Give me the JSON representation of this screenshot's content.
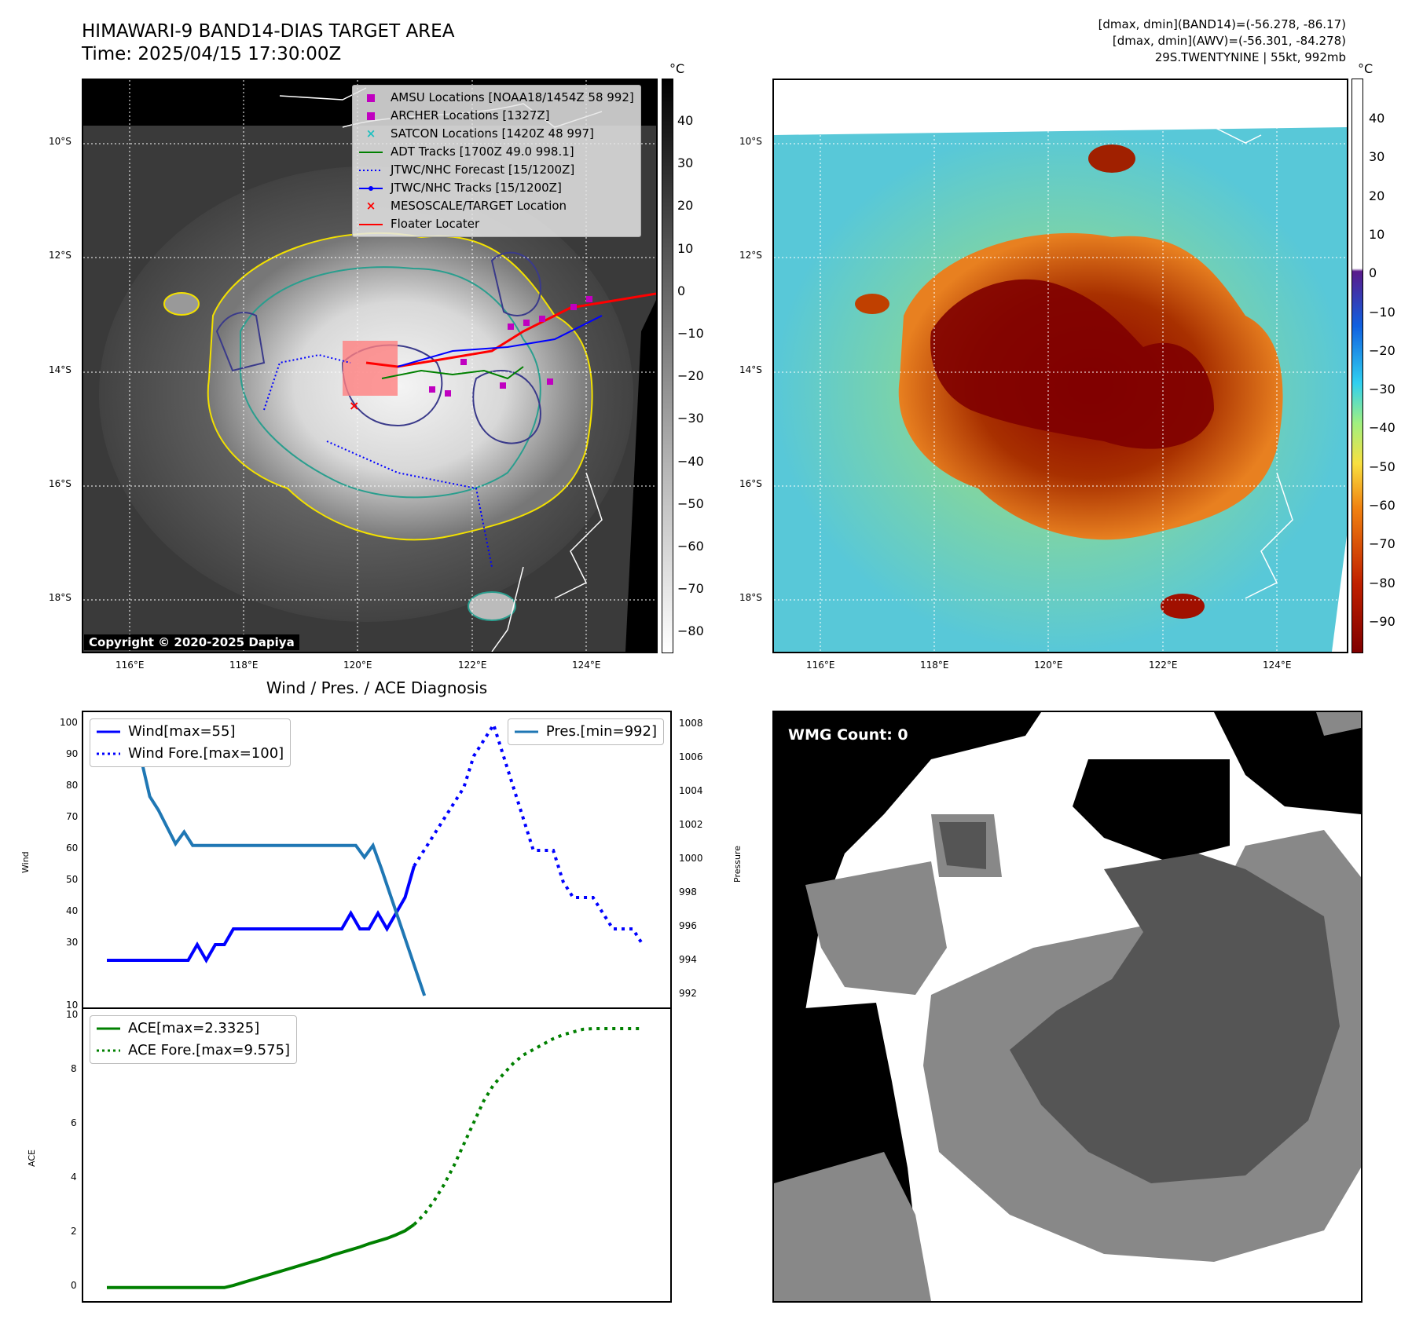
{
  "header": {
    "title_line1": "HIMAWARI-9 BAND14-DIAS TARGET AREA",
    "title_line2": "Time: 2025/04/15 17:30:00Z",
    "info_line1": "[dmax, dmin](BAND14)=(-56.278, -86.17)",
    "info_line2": "[dmax, dmin](AWV)=(-56.301, -84.278)",
    "info_line3": "29S.TWENTYNINE | 55kt, 992mb"
  },
  "map_axes": {
    "lat_labels": [
      "10°S",
      "12°S",
      "14°S",
      "16°S",
      "18°S"
    ],
    "lon_labels": [
      "116°E",
      "118°E",
      "120°E",
      "122°E",
      "124°E"
    ]
  },
  "colorbar_left": {
    "unit": "°C",
    "ticks": [
      "40",
      "30",
      "20",
      "10",
      "0",
      "−10",
      "−20",
      "−30",
      "−40",
      "−50",
      "−60",
      "−70",
      "−80"
    ]
  },
  "colorbar_right": {
    "unit": "°C",
    "ticks": [
      "40",
      "30",
      "20",
      "10",
      "0",
      "−10",
      "−20",
      "−30",
      "−40",
      "−50",
      "−60",
      "−70",
      "−80",
      "−90"
    ]
  },
  "map_legend": [
    {
      "label": "AMSU Locations [NOAA18/1454Z 58 992]",
      "marker": "square",
      "color": "#c000c0"
    },
    {
      "label": "ARCHER Locations [1327Z]",
      "marker": "square",
      "color": "#c000c0"
    },
    {
      "label": "SATCON Locations [1420Z 48 997]",
      "marker": "x",
      "color": "#20c0c0"
    },
    {
      "label": "ADT Tracks [1700Z 49.0 998.1]",
      "marker": "line",
      "color": "#008000"
    },
    {
      "label": "JTWC/NHC Forecast [15/1200Z]",
      "marker": "dotted",
      "color": "#0000ff"
    },
    {
      "label": "JTWC/NHC Tracks [15/1200Z]",
      "marker": "line-dot",
      "color": "#0000ff"
    },
    {
      "label": "MESOSCALE/TARGET Location",
      "marker": "x",
      "color": "#ff0000"
    },
    {
      "label": "Floater Locater",
      "marker": "line",
      "color": "#ff0000"
    }
  ],
  "copyright": "Copyright © 2020-2025 Dapiya",
  "wmg_label": "WMG Count: 0",
  "chart_data": [
    {
      "type": "line",
      "title": "Wind / Pres. / ACE Diagnosis",
      "ylabel": "Wind",
      "y2label": "Pressure",
      "ylim": [
        10,
        104
      ],
      "y2lim": [
        991.3,
        1008.8
      ],
      "yticks": [
        10,
        30,
        40,
        50,
        60,
        70,
        80,
        90,
        100
      ],
      "y2ticks": [
        992,
        994,
        996,
        998,
        1000,
        1002,
        1004,
        1006,
        1008
      ],
      "series": [
        {
          "name": "Wind[max=55]",
          "axis": "left",
          "style": "solid",
          "color": "#0000ff",
          "values": [
            25,
            25,
            25,
            25,
            25,
            25,
            25,
            25,
            25,
            25,
            30,
            25,
            30,
            30,
            35,
            35,
            35,
            35,
            35,
            35,
            35,
            35,
            35,
            35,
            35,
            35,
            35,
            40,
            35,
            35,
            40,
            35,
            40,
            45,
            55
          ]
        },
        {
          "name": "Wind Fore.[max=100]",
          "axis": "left",
          "style": "dotted",
          "color": "#0000ff",
          "values": [
            55,
            60,
            65,
            70,
            75,
            80,
            90,
            95,
            100,
            90,
            80,
            70,
            60,
            60,
            60,
            50,
            45,
            45,
            45,
            40,
            35,
            35,
            35,
            30
          ]
        },
        {
          "name": "Pres.[min=992]",
          "axis": "right",
          "style": "solid",
          "color": "#1f77b4",
          "values": [
            1008,
            1006.5,
            1006.5,
            1006,
            1006,
            1003.8,
            1003,
            1002,
            1001,
            1001.7,
            1000.9,
            1000.9,
            1000.9,
            1000.9,
            1000.9,
            1000.9,
            1000.9,
            1000.9,
            1000.9,
            1000.9,
            1000.9,
            1000.9,
            1000.9,
            1000.9,
            1000.9,
            1000.9,
            1000.9,
            1000.9,
            1000.9,
            1000.9,
            1000.2,
            1000.9,
            999.5,
            998,
            996.5,
            995,
            993.5,
            992
          ]
        }
      ]
    },
    {
      "type": "line",
      "ylabel": "ACE",
      "ylim": [
        -0.5,
        10.3
      ],
      "yticks": [
        0,
        2,
        4,
        6,
        8,
        10
      ],
      "series": [
        {
          "name": "ACE[max=2.3325]",
          "style": "solid",
          "color": "#008000",
          "values": [
            0,
            0,
            0,
            0,
            0,
            0,
            0,
            0,
            0,
            0,
            0,
            0,
            0,
            0,
            0.08,
            0.18,
            0.28,
            0.38,
            0.48,
            0.58,
            0.68,
            0.78,
            0.88,
            0.98,
            1.08,
            1.2,
            1.3,
            1.4,
            1.5,
            1.62,
            1.72,
            1.82,
            1.95,
            2.1,
            2.33
          ]
        },
        {
          "name": "ACE Fore.[max=9.575]",
          "style": "dotted",
          "color": "#008000",
          "values": [
            2.33,
            2.7,
            3.2,
            3.8,
            4.5,
            5.3,
            6.1,
            6.9,
            7.5,
            7.9,
            8.3,
            8.6,
            8.8,
            9.0,
            9.2,
            9.35,
            9.45,
            9.55,
            9.575,
            9.575,
            9.575,
            9.575,
            9.575,
            9.575
          ]
        }
      ]
    }
  ]
}
